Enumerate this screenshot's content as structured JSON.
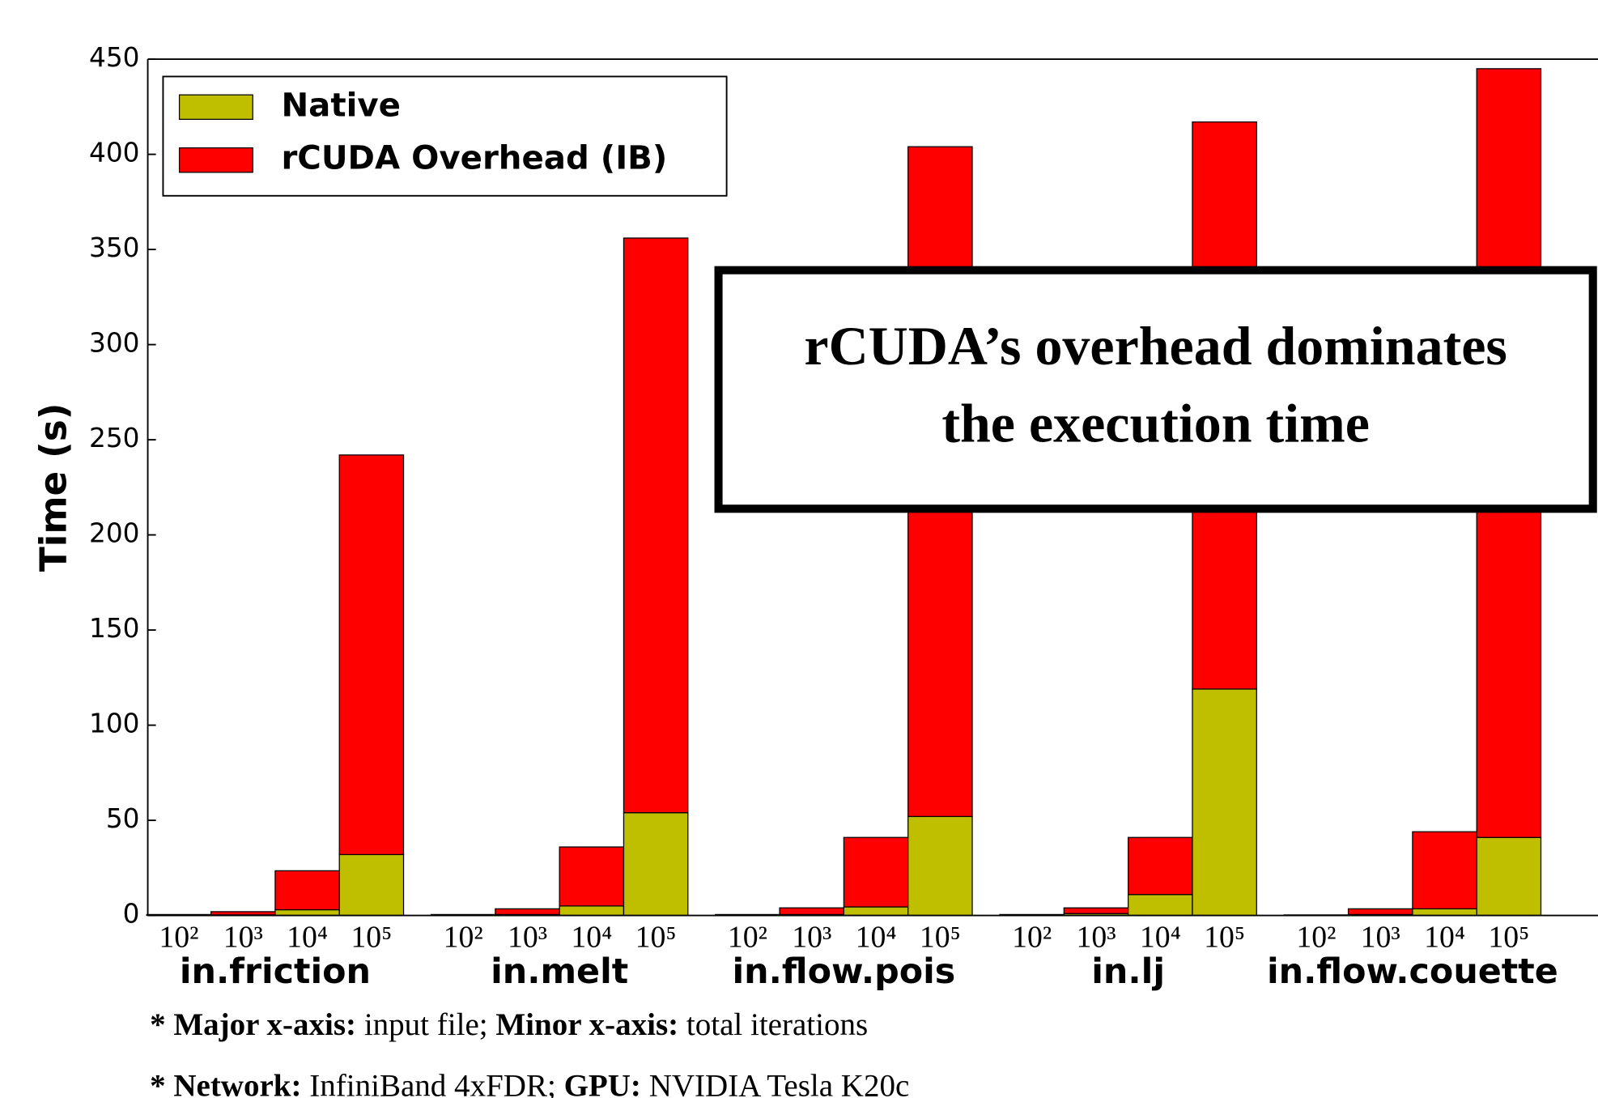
{
  "chart_data": {
    "type": "stacked_bar",
    "ylabel": "Time (s)",
    "groups": [
      "in.friction",
      "in.melt",
      "in.flow.pois",
      "in.lj",
      "in.flow.couette"
    ],
    "categories": [
      "10²",
      "10³",
      "10⁴",
      "10⁵",
      "10²",
      "10³",
      "10⁴",
      "10⁵",
      "10²",
      "10³",
      "10⁴",
      "10⁵",
      "10²",
      "10³",
      "10⁴",
      "10⁵",
      "10²",
      "10³",
      "10⁴",
      "10⁵"
    ],
    "series": [
      {
        "name": "Native",
        "color": "#bfbf00",
        "values": [
          0.1,
          0.3,
          3,
          32,
          0.1,
          0.5,
          5,
          54,
          0.1,
          0.5,
          4.5,
          52,
          0.1,
          1,
          11,
          119,
          0.05,
          0.5,
          3.5,
          41
        ]
      },
      {
        "name": "rCUDA Overhead (IB)",
        "color": "#ff0000",
        "values": [
          0.4,
          1.7,
          20.5,
          210,
          0.4,
          3,
          31,
          302,
          0.4,
          3.5,
          36.5,
          352,
          0.4,
          3,
          30,
          298,
          0.25,
          3,
          40.5,
          404
        ]
      }
    ],
    "ylim": [
      0,
      450
    ],
    "yticks": [
      0,
      50,
      100,
      150,
      200,
      250,
      300,
      350,
      400,
      450
    ],
    "legend": "upper left",
    "annotation": [
      "rCUDA’s overhead dominates",
      "the execution time"
    ],
    "notes": [
      [
        {
          "text": "* Major x-axis:",
          "bold": true
        },
        {
          "text": " input file; ",
          "bold": false
        },
        {
          "text": "Minor x-axis:",
          "bold": true
        },
        {
          "text": " total iterations",
          "bold": false
        }
      ],
      [
        {
          "text": "* Network:",
          "bold": true
        },
        {
          "text": " InfiniBand 4xFDR; ",
          "bold": false
        },
        {
          "text": "GPU:",
          "bold": true
        },
        {
          "text": " NVIDIA Tesla K20c",
          "bold": false
        }
      ]
    ]
  }
}
